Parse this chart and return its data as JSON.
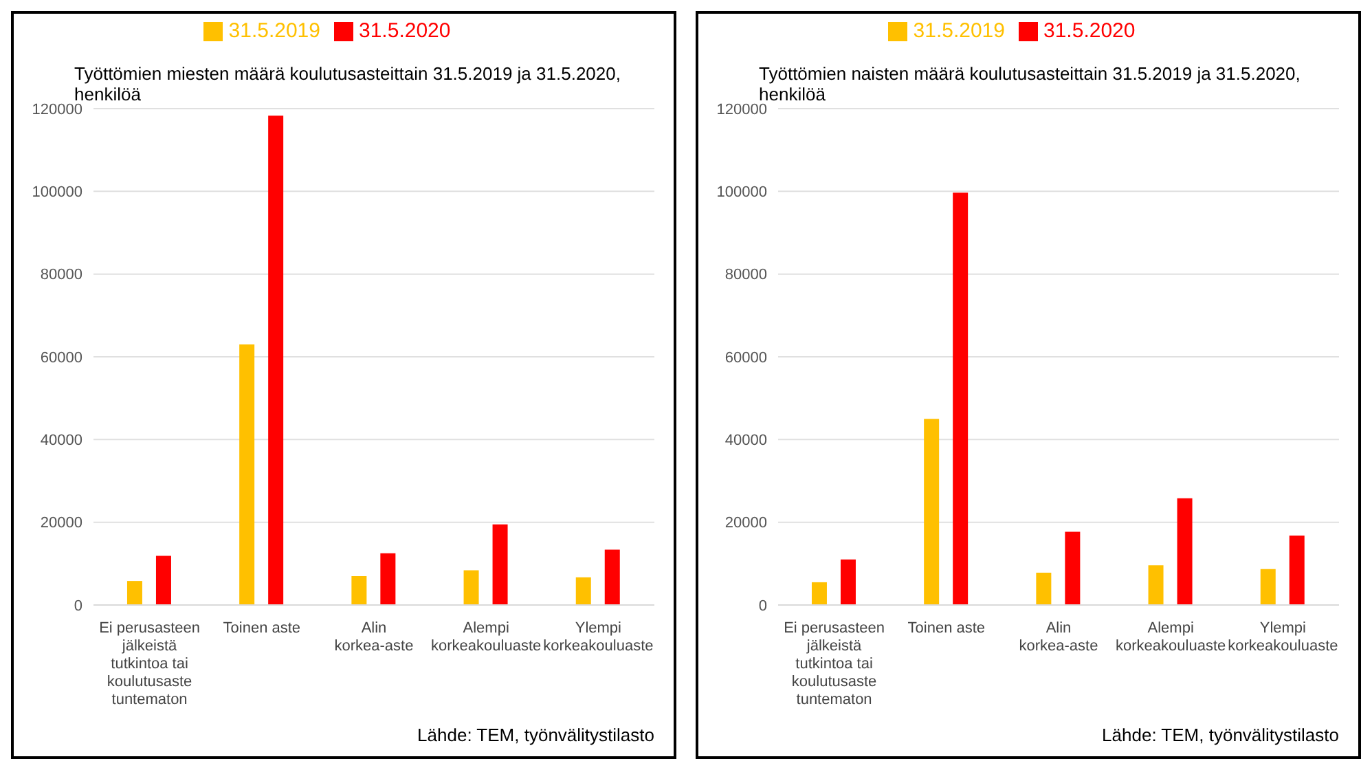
{
  "chart_data": [
    {
      "type": "bar",
      "title": "Työttömien miesten määrä koulutusasteittain 31.5.2019 ja 31.5.2020, henkilöä",
      "categories": [
        "Ei perusasteen jälkeistä tutkintoa tai koulutusaste tuntematon",
        "Toinen aste",
        "Alin korkea-aste",
        "Alempi korkeakouluaste",
        "Ylempi korkeakouluaste"
      ],
      "series": [
        {
          "name": "31.5.2019",
          "color": "#ffc000",
          "values": [
            5800,
            63000,
            7000,
            8400,
            6700
          ]
        },
        {
          "name": "31.5.2020",
          "color": "#ff0000",
          "values": [
            11900,
            118300,
            12500,
            19500,
            13400
          ]
        }
      ],
      "ylim": [
        0,
        120000
      ],
      "yticks": [
        0,
        20000,
        40000,
        60000,
        80000,
        100000,
        120000
      ],
      "grid": "y",
      "legend": "top",
      "annotations": [
        "Lähde: TEM, työnvälitystilasto"
      ]
    },
    {
      "type": "bar",
      "title": "Työttömien naisten määrä koulutusasteittain 31.5.2019 ja 31.5.2020, henkilöä",
      "categories": [
        "Ei perusasteen jälkeistä tutkintoa tai koulutusaste tuntematon",
        "Toinen aste",
        "Alin korkea-aste",
        "Alempi korkeakouluaste",
        "Ylempi korkeakouluaste"
      ],
      "series": [
        {
          "name": "31.5.2019",
          "color": "#ffc000",
          "values": [
            5500,
            45000,
            7800,
            9600,
            8700
          ]
        },
        {
          "name": "31.5.2020",
          "color": "#ff0000",
          "values": [
            11000,
            99700,
            17700,
            25800,
            16800
          ]
        }
      ],
      "ylim": [
        0,
        120000
      ],
      "yticks": [
        0,
        20000,
        40000,
        60000,
        80000,
        100000,
        120000
      ],
      "grid": "y",
      "legend": "top",
      "annotations": [
        "Lähde: TEM, työnvälitystilasto"
      ]
    }
  ]
}
